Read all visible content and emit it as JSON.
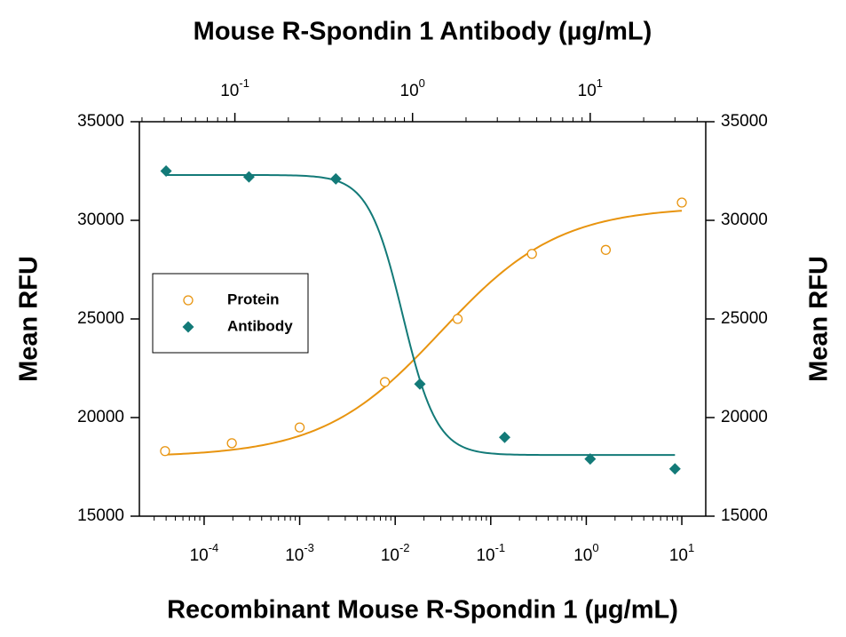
{
  "chart_data": {
    "type": "scatter",
    "title": "Mouse R-Spondin 1 Antibody (µg/mL)",
    "xlabel": "Recombinant Mouse R-Spondin 1 (µg/mL)",
    "ylabel": "Mean RFU",
    "y2label": "Mean RFU",
    "xscale": "log",
    "xlim": [
      2.1e-05,
      17.8
    ],
    "xticks": [
      {
        "value": 0.0001,
        "label": "10-4"
      },
      {
        "value": 0.001,
        "label": "10-3"
      },
      {
        "value": 0.01,
        "label": "10-2"
      },
      {
        "value": 0.1,
        "label": "10-1"
      },
      {
        "value": 1,
        "label": "100"
      },
      {
        "value": 10,
        "label": "101"
      }
    ],
    "x2scale": "log",
    "x2lim": [
      0.029,
      44.7
    ],
    "x2ticks": [
      {
        "value": 0.1,
        "label": "10-1"
      },
      {
        "value": 1,
        "label": "100"
      },
      {
        "value": 10,
        "label": "101"
      }
    ],
    "minor_ticks": true,
    "ylim": [
      15000,
      35000
    ],
    "yticks": [
      15000,
      20000,
      25000,
      30000,
      35000
    ],
    "y2lim": [
      15000,
      35000
    ],
    "y2ticks": [
      15000,
      20000,
      25000,
      30000,
      35000
    ],
    "legend": "center-left",
    "series": [
      {
        "name": "Protein",
        "color": "#e8940f",
        "marker": "circle",
        "axis": "x",
        "x": [
          3.9e-05,
          0.000195,
          0.001,
          0.0078,
          0.045,
          0.27,
          1.6,
          10
        ],
        "values": [
          18300,
          18700,
          19500,
          21800,
          25000,
          28300,
          28500,
          30900
        ],
        "fit": {
          "start": 18000,
          "end": 30700,
          "ec50": 0.03,
          "hill": 0.7
        }
      },
      {
        "name": "Antibody",
        "color": "#137a78",
        "marker": "diamond",
        "axis": "x2",
        "x": [
          0.041,
          0.12,
          0.37,
          1.1,
          3.3,
          10,
          30
        ],
        "values": [
          32500,
          32200,
          32100,
          21700,
          19000,
          17900,
          17400
        ],
        "fit": {
          "start": 32300,
          "end": 18100,
          "ec50": 0.88,
          "hill": 4.5
        }
      }
    ]
  }
}
